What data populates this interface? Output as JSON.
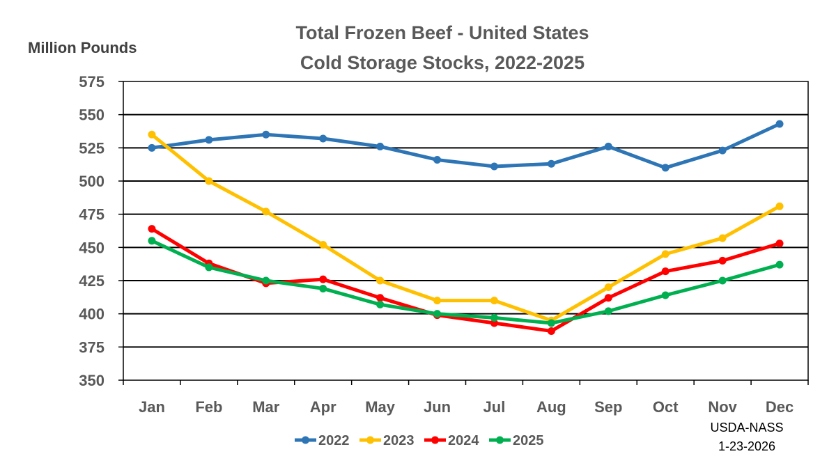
{
  "chart_data": {
    "type": "line",
    "title_lines": [
      "Total Frozen Beef - United States",
      "Cold Storage Stocks, 2022-2025"
    ],
    "ylabel": "Million Pounds",
    "xlabel": "",
    "ylim": [
      350,
      575
    ],
    "yticks": [
      350,
      375,
      400,
      425,
      450,
      475,
      500,
      525,
      550,
      575
    ],
    "categories": [
      "Jan",
      "Feb",
      "Mar",
      "Apr",
      "May",
      "Jun",
      "Jul",
      "Aug",
      "Sep",
      "Oct",
      "Nov",
      "Dec"
    ],
    "grid": true,
    "legend_position": "bottom",
    "series": [
      {
        "name": "2022",
        "color": "#2E75B6",
        "values": [
          525,
          531,
          535,
          532,
          526,
          516,
          511,
          513,
          526,
          510,
          523,
          543
        ]
      },
      {
        "name": "2023",
        "color": "#FFC000",
        "values": [
          535,
          500,
          477,
          452,
          425,
          410,
          410,
          395,
          420,
          445,
          457,
          481
        ]
      },
      {
        "name": "2024",
        "color": "#FF0000",
        "values": [
          464,
          438,
          423,
          426,
          412,
          399,
          393,
          387,
          412,
          432,
          440,
          453
        ]
      },
      {
        "name": "2025",
        "color": "#00B050",
        "values": [
          455,
          435,
          425,
          419,
          407,
          400,
          397,
          393,
          402,
          414,
          425,
          437
        ]
      }
    ],
    "source_lines": [
      "USDA-NASS",
      "1-23-2026"
    ]
  }
}
